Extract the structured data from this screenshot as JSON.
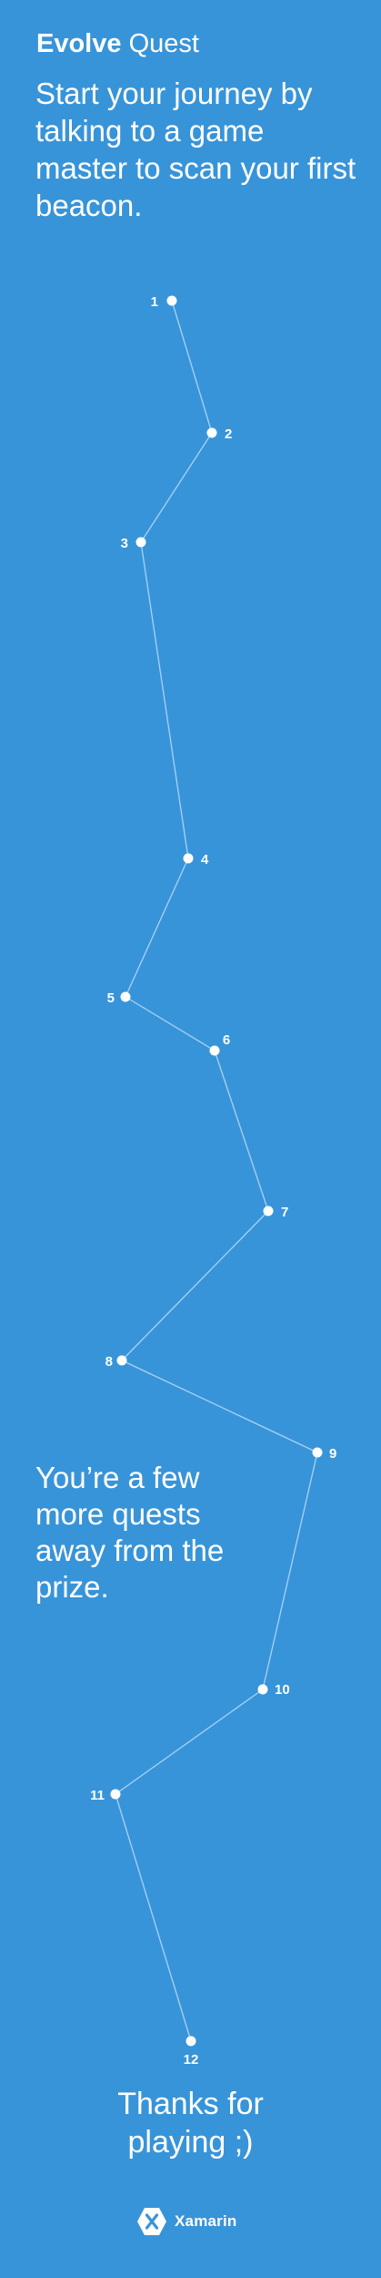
{
  "header": {
    "title_strong": "Evolve",
    "title_light": "Quest"
  },
  "intro": {
    "text": "Start your journey by talking to a game master to scan your first beacon."
  },
  "progress": {
    "message": "You’re a few more quests away from the prize."
  },
  "path": {
    "beacons": [
      {
        "label": "1"
      },
      {
        "label": "2"
      },
      {
        "label": "3"
      },
      {
        "label": "4"
      },
      {
        "label": "5"
      },
      {
        "label": "6"
      },
      {
        "label": "7"
      },
      {
        "label": "8"
      },
      {
        "label": "9"
      },
      {
        "label": "10"
      },
      {
        "label": "11"
      },
      {
        "label": "12"
      }
    ]
  },
  "footer": {
    "thanks_line1": "Thanks for",
    "thanks_line2": "playing ;)",
    "brand_name": "Xamarin",
    "brand_icon": "xamarin-logo-icon"
  },
  "colors": {
    "background": "#3894d9",
    "foreground": "#ffffff",
    "path_line": "#a9d2f1"
  }
}
